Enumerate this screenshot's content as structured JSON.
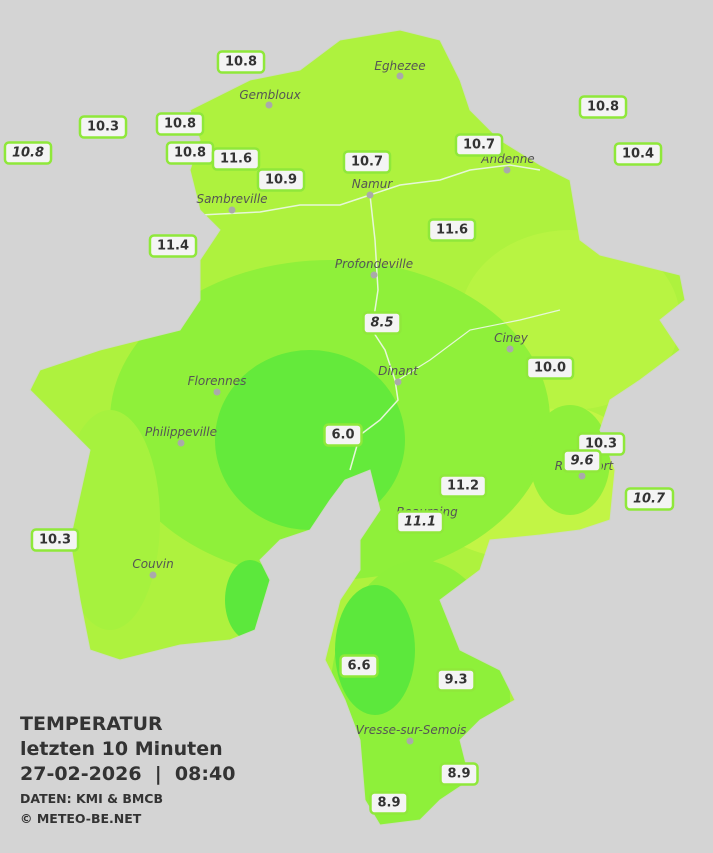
{
  "title": {
    "heading": "TEMPERATUR",
    "period": "letzten 10 Minuten",
    "timestamp": "27-02-2026  |  08:40",
    "source": "DATEN: KMI & BMCB",
    "copyright": "© METEO-BE.NET"
  },
  "cities": [
    {
      "name": "Eghezee"
    },
    {
      "name": "Gembloux"
    },
    {
      "name": "Andenne"
    },
    {
      "name": "Namur"
    },
    {
      "name": "Sambreville"
    },
    {
      "name": "Profondeville"
    },
    {
      "name": "Ciney"
    },
    {
      "name": "Dinant"
    },
    {
      "name": "Florennes"
    },
    {
      "name": "Philippeville"
    },
    {
      "name": "Rochefort"
    },
    {
      "name": "Beauraing"
    },
    {
      "name": "Couvin"
    },
    {
      "name": "Vresse-sur-Semois"
    }
  ],
  "stations": [
    {
      "label": "10.8"
    },
    {
      "label": "10.3"
    },
    {
      "label": "10.8"
    },
    {
      "label": "10.8"
    },
    {
      "label": "10.8"
    },
    {
      "label": "11.6"
    },
    {
      "label": "10.9"
    },
    {
      "label": "10.7"
    },
    {
      "label": "10.7"
    },
    {
      "label": "10.8"
    },
    {
      "label": "10.4"
    },
    {
      "label": "11.6"
    },
    {
      "label": "11.4"
    },
    {
      "label": "8.5"
    },
    {
      "label": "10.0"
    },
    {
      "label": "6.0"
    },
    {
      "label": "10.3"
    },
    {
      "label": "9.6"
    },
    {
      "label": "11.2"
    },
    {
      "label": "11.1"
    },
    {
      "label": "10.7"
    },
    {
      "label": "10.3"
    },
    {
      "label": "6.6"
    },
    {
      "label": "9.3"
    },
    {
      "label": "8.9"
    },
    {
      "label": "8.9"
    }
  ]
}
